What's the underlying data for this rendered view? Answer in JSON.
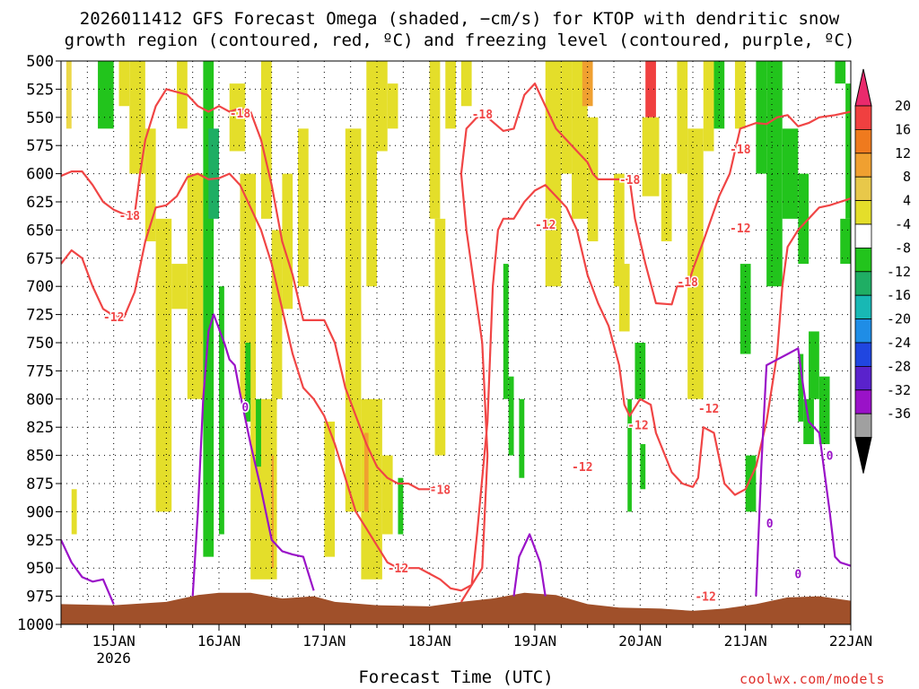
{
  "title_line1": "2026011412 GFS Forecast Omega (shaded, −cm/s) for KTOP with dendritic snow",
  "title_line2": "growth region (contoured, red, ºC) and freezing level (contoured, purple, ºC)",
  "xlabel": "Forecast Time (UTC)",
  "credit": "coolwx.com/models",
  "chart_data": {
    "type": "heatmap",
    "title": "2026011412 GFS Forecast Omega (shaded, −cm/s) for KTOP with dendritic snow growth region (contoured, red, ºC) and freezing level (contoured, purple, ºC)",
    "xlabel": "Forecast Time (UTC)",
    "ylabel": "",
    "x_range_days": [
      14.5,
      22.0
    ],
    "x_ticks": [
      {
        "day": 15,
        "label": "15JAN",
        "sub": "2026"
      },
      {
        "day": 16,
        "label": "16JAN",
        "sub": ""
      },
      {
        "day": 17,
        "label": "17JAN",
        "sub": ""
      },
      {
        "day": 18,
        "label": "18JAN",
        "sub": ""
      },
      {
        "day": 19,
        "label": "19JAN",
        "sub": ""
      },
      {
        "day": 20,
        "label": "20JAN",
        "sub": ""
      },
      {
        "day": 21,
        "label": "21JAN",
        "sub": ""
      },
      {
        "day": 22,
        "label": "22JAN",
        "sub": ""
      }
    ],
    "y_range_hpa": [
      500,
      1000
    ],
    "y_ticks": [
      500,
      525,
      550,
      575,
      600,
      625,
      650,
      675,
      700,
      725,
      750,
      775,
      800,
      825,
      850,
      875,
      900,
      925,
      950,
      975,
      1000
    ],
    "grid": "dotted",
    "colorbar": {
      "levels": [
        "20",
        "16",
        "12",
        "8",
        "4",
        "-4",
        "-8",
        "-12",
        "-16",
        "-20",
        "-24",
        "-28",
        "-32",
        "-36"
      ],
      "colors": [
        "#ea2a6c",
        "#f04040",
        "#ef7a1e",
        "#f0a030",
        "#e8c84a",
        "#e4de2a",
        "#ffffff",
        "#22c41c",
        "#1fae64",
        "#18b8b4",
        "#1f8de6",
        "#2046e0",
        "#5a22cc",
        "#9a12c8",
        "#a0a0a0",
        "#000000"
      ]
    },
    "omega_regions": [
      {
        "class": "pos4",
        "t": [
          14.8,
          15.6,
          15.9,
          16.4,
          16.7,
          17.3,
          17.6,
          18.1,
          18.8,
          19.2,
          19.8,
          20.5
        ],
        "note": "yellow ascent pockets"
      },
      {
        "class": "neg4",
        "t": [
          14.6,
          15.8,
          16.4,
          18.6,
          19.9,
          20.9,
          21.3
        ],
        "note": "green descent pockets"
      }
    ],
    "contours": [
      {
        "name": "dgz-18",
        "color": "red",
        "label": "-18",
        "points": [
          [
            14.5,
            602
          ],
          [
            14.6,
            598
          ],
          [
            14.7,
            598
          ],
          [
            14.8,
            610
          ],
          [
            14.9,
            625
          ],
          [
            15.0,
            632
          ],
          [
            15.1,
            636
          ],
          [
            15.2,
            636
          ],
          [
            15.25,
            600
          ],
          [
            15.3,
            570
          ],
          [
            15.4,
            540
          ],
          [
            15.5,
            525
          ],
          [
            15.7,
            530
          ],
          [
            15.8,
            540
          ],
          [
            15.9,
            545
          ],
          [
            16.0,
            540
          ],
          [
            16.1,
            545
          ],
          [
            16.2,
            542
          ],
          [
            16.3,
            545
          ],
          [
            16.4,
            570
          ],
          [
            16.5,
            610
          ],
          [
            16.6,
            660
          ],
          [
            16.7,
            690
          ],
          [
            16.8,
            730
          ],
          [
            16.9,
            730
          ],
          [
            17.0,
            730
          ],
          [
            17.1,
            750
          ],
          [
            17.2,
            790
          ],
          [
            17.3,
            815
          ],
          [
            17.4,
            840
          ],
          [
            17.5,
            860
          ],
          [
            17.6,
            870
          ],
          [
            17.7,
            875
          ],
          [
            17.8,
            875
          ],
          [
            17.9,
            880
          ],
          [
            18.0,
            880
          ],
          [
            18.05,
            878
          ]
        ]
      },
      {
        "name": "dgz-18b",
        "color": "red",
        "label": "-18",
        "points": [
          [
            18.3,
            980
          ],
          [
            18.5,
            950
          ],
          [
            18.55,
            850
          ],
          [
            18.5,
            750
          ],
          [
            18.35,
            650
          ],
          [
            18.3,
            600
          ],
          [
            18.35,
            560
          ],
          [
            18.45,
            550
          ],
          [
            18.55,
            550
          ],
          [
            18.7,
            562
          ],
          [
            18.8,
            560
          ],
          [
            18.9,
            530
          ],
          [
            19.0,
            520
          ],
          [
            19.1,
            540
          ],
          [
            19.2,
            560
          ],
          [
            19.3,
            570
          ],
          [
            19.4,
            580
          ],
          [
            19.5,
            590
          ],
          [
            19.55,
            600
          ],
          [
            19.6,
            605
          ],
          [
            19.8,
            605
          ],
          [
            19.9,
            605
          ],
          [
            19.95,
            640
          ],
          [
            20.05,
            680
          ],
          [
            20.15,
            715
          ],
          [
            20.3,
            716
          ],
          [
            20.35,
            700
          ],
          [
            20.45,
            700
          ],
          [
            20.5,
            685
          ],
          [
            20.6,
            660
          ],
          [
            20.75,
            620
          ],
          [
            20.85,
            600
          ],
          [
            20.9,
            580
          ],
          [
            20.95,
            560
          ],
          [
            21.1,
            555
          ],
          [
            21.2,
            556
          ],
          [
            21.3,
            550
          ],
          [
            21.4,
            548
          ],
          [
            21.5,
            558
          ],
          [
            21.6,
            555
          ],
          [
            21.7,
            550
          ],
          [
            21.85,
            548
          ],
          [
            22.0,
            545
          ]
        ]
      },
      {
        "name": "dgz-12",
        "color": "red",
        "label": "-12",
        "points": [
          [
            14.5,
            680
          ],
          [
            14.6,
            668
          ],
          [
            14.7,
            675
          ],
          [
            14.8,
            700
          ],
          [
            14.9,
            720
          ],
          [
            15.0,
            726
          ],
          [
            15.1,
            727
          ],
          [
            15.2,
            705
          ],
          [
            15.3,
            660
          ],
          [
            15.4,
            630
          ],
          [
            15.5,
            628
          ],
          [
            15.6,
            620
          ],
          [
            15.7,
            603
          ],
          [
            15.8,
            600
          ],
          [
            15.9,
            605
          ],
          [
            16.0,
            604
          ],
          [
            16.1,
            600
          ],
          [
            16.2,
            610
          ],
          [
            16.3,
            630
          ],
          [
            16.4,
            650
          ],
          [
            16.5,
            680
          ],
          [
            16.6,
            720
          ],
          [
            16.7,
            760
          ],
          [
            16.8,
            790
          ],
          [
            16.9,
            800
          ],
          [
            17.0,
            815
          ],
          [
            17.1,
            840
          ],
          [
            17.2,
            870
          ],
          [
            17.3,
            900
          ],
          [
            17.4,
            915
          ],
          [
            17.5,
            930
          ],
          [
            17.6,
            945
          ],
          [
            17.7,
            950
          ],
          [
            17.8,
            950
          ],
          [
            17.9,
            950
          ],
          [
            18.0,
            955
          ],
          [
            18.1,
            960
          ],
          [
            18.2,
            968
          ],
          [
            18.3,
            970
          ],
          [
            18.4,
            965
          ],
          [
            18.45,
            920
          ],
          [
            18.55,
            820
          ],
          [
            18.6,
            700
          ],
          [
            18.65,
            650
          ],
          [
            18.7,
            640
          ],
          [
            18.8,
            640
          ],
          [
            18.9,
            625
          ],
          [
            19.0,
            615
          ],
          [
            19.1,
            610
          ],
          [
            19.2,
            620
          ],
          [
            19.3,
            630
          ],
          [
            19.4,
            650
          ],
          [
            19.5,
            690
          ],
          [
            19.6,
            715
          ],
          [
            19.7,
            735
          ],
          [
            19.8,
            770
          ],
          [
            19.85,
            805
          ],
          [
            19.9,
            815
          ],
          [
            20.0,
            800
          ],
          [
            20.1,
            805
          ],
          [
            20.15,
            830
          ],
          [
            20.3,
            865
          ],
          [
            20.4,
            875
          ],
          [
            20.5,
            878
          ],
          [
            20.55,
            870
          ],
          [
            20.6,
            825
          ],
          [
            20.7,
            830
          ],
          [
            20.8,
            875
          ],
          [
            20.9,
            885
          ],
          [
            21.0,
            880
          ],
          [
            21.1,
            860
          ],
          [
            21.2,
            820
          ],
          [
            21.3,
            760
          ],
          [
            21.35,
            700
          ],
          [
            21.4,
            665
          ],
          [
            21.5,
            650
          ],
          [
            21.6,
            640
          ],
          [
            21.7,
            630
          ],
          [
            21.8,
            628
          ],
          [
            21.9,
            625
          ],
          [
            22.0,
            622
          ]
        ]
      },
      {
        "name": "fz0",
        "color": "purple",
        "label": "0",
        "points": [
          [
            14.5,
            925
          ],
          [
            14.6,
            945
          ],
          [
            14.7,
            958
          ],
          [
            14.8,
            962
          ],
          [
            14.9,
            960
          ],
          [
            15.0,
            982
          ]
        ]
      },
      {
        "name": "fz0b",
        "color": "purple",
        "label": "0",
        "points": [
          [
            15.75,
            975
          ],
          [
            15.8,
            900
          ],
          [
            15.85,
            800
          ],
          [
            15.9,
            740
          ],
          [
            15.95,
            725
          ],
          [
            16.05,
            750
          ],
          [
            16.1,
            765
          ],
          [
            16.15,
            770
          ],
          [
            16.2,
            795
          ],
          [
            16.3,
            840
          ],
          [
            16.4,
            880
          ],
          [
            16.5,
            925
          ],
          [
            16.6,
            935
          ],
          [
            16.7,
            938
          ],
          [
            16.8,
            940
          ],
          [
            16.9,
            970
          ]
        ]
      },
      {
        "name": "fz0c",
        "color": "purple",
        "label": "0",
        "points": [
          [
            18.8,
            975
          ],
          [
            18.85,
            940
          ],
          [
            18.95,
            920
          ],
          [
            19.05,
            945
          ],
          [
            19.1,
            975
          ]
        ]
      },
      {
        "name": "fz0d",
        "color": "purple",
        "label": "0",
        "points": [
          [
            21.1,
            975
          ],
          [
            21.15,
            860
          ],
          [
            21.2,
            770
          ],
          [
            21.3,
            765
          ],
          [
            21.4,
            760
          ],
          [
            21.5,
            755
          ],
          [
            21.55,
            790
          ],
          [
            21.6,
            820
          ],
          [
            21.7,
            830
          ],
          [
            21.8,
            900
          ],
          [
            21.85,
            940
          ],
          [
            21.9,
            945
          ],
          [
            22.0,
            948
          ]
        ]
      }
    ]
  }
}
